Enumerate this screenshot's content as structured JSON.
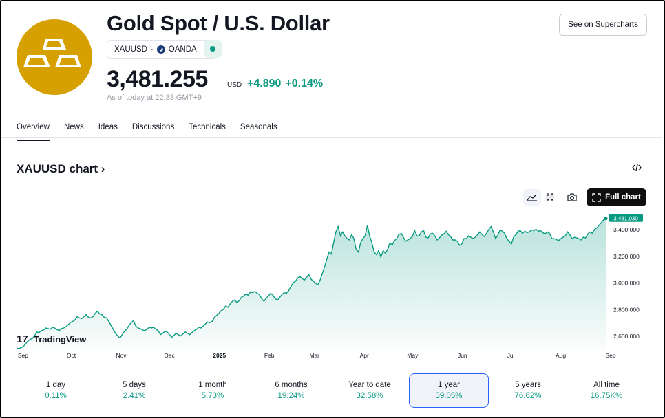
{
  "header": {
    "title": "Gold Spot / U.S. Dollar",
    "symbol": "XAUUSD",
    "separator": "·",
    "exchange": "OANDA",
    "price": "3,481.255",
    "currency": "USD",
    "change_abs": "+4.890",
    "change_pct": "+0.14%",
    "as_of": "As of today at 22:33 GMT+9",
    "supercharts_label": "See on Supercharts"
  },
  "tabs": [
    {
      "label": "Overview",
      "active": true
    },
    {
      "label": "News"
    },
    {
      "label": "Ideas"
    },
    {
      "label": "Discussions"
    },
    {
      "label": "Technicals"
    },
    {
      "label": "Seasonals"
    }
  ],
  "chart_section": {
    "title": "XAUUSD chart ›",
    "full_chart_label": "Full chart",
    "watermark": "TradingView"
  },
  "colors": {
    "accent_green": "#089981",
    "gold": "#d6a100",
    "selected_border": "#2962ff"
  },
  "chart_data": {
    "type": "area",
    "x_start": "2024-08-28",
    "x_end": "2025-08-29",
    "months": [
      "Sep",
      "Oct",
      "Nov",
      "Dec",
      "2025",
      "Feb",
      "Mar",
      "Apr",
      "May",
      "Jun",
      "Jul",
      "Aug",
      "Sep"
    ],
    "yticks": [
      "2,600.000",
      "2,800.000",
      "3,000.000",
      "3,200.000",
      "3,400.000"
    ],
    "ylim": [
      2500,
      3480
    ],
    "last_value_label": "3,481.030",
    "series": [
      {
        "values": [
          2510,
          2505,
          2512,
          2520,
          2540,
          2560,
          2575,
          2580,
          2600,
          2630,
          2625,
          2640,
          2645,
          2660,
          2655,
          2650,
          2665,
          2660,
          2648,
          2640,
          2655,
          2660,
          2670,
          2685,
          2700,
          2710,
          2720,
          2745,
          2735,
          2730,
          2745,
          2760,
          2740,
          2735,
          2745,
          2770,
          2785,
          2765,
          2760,
          2740,
          2735,
          2710,
          2680,
          2650,
          2620,
          2600,
          2585,
          2610,
          2635,
          2650,
          2680,
          2700,
          2715,
          2675,
          2660,
          2655,
          2645,
          2640,
          2650,
          2665,
          2660,
          2665,
          2650,
          2640,
          2610,
          2620,
          2635,
          2630,
          2610,
          2590,
          2605,
          2620,
          2610,
          2600,
          2615,
          2630,
          2620,
          2610,
          2625,
          2640,
          2650,
          2665,
          2660,
          2675,
          2690,
          2705,
          2700,
          2710,
          2740,
          2755,
          2770,
          2790,
          2800,
          2825,
          2815,
          2840,
          2860,
          2870,
          2850,
          2865,
          2890,
          2900,
          2915,
          2905,
          2930,
          2925,
          2935,
          2920,
          2910,
          2880,
          2860,
          2885,
          2900,
          2920,
          2905,
          2880,
          2870,
          2890,
          2910,
          2925,
          2920,
          2940,
          2970,
          3000,
          3010,
          3035,
          3045,
          3030,
          3020,
          3040,
          3060,
          3025,
          3010,
          2995,
          2985,
          3020,
          3070,
          3120,
          3180,
          3230,
          3215,
          3300,
          3380,
          3420,
          3350,
          3380,
          3350,
          3330,
          3320,
          3360,
          3330,
          3250,
          3230,
          3300,
          3330,
          3350,
          3430,
          3350,
          3300,
          3230,
          3210,
          3240,
          3190,
          3240,
          3220,
          3250,
          3300,
          3280,
          3315,
          3330,
          3360,
          3370,
          3340,
          3310,
          3320,
          3330,
          3345,
          3390,
          3350,
          3350,
          3380,
          3390,
          3340,
          3335,
          3365,
          3370,
          3350,
          3320,
          3335,
          3355,
          3365,
          3385,
          3360,
          3345,
          3320,
          3320,
          3310,
          3280,
          3290,
          3330,
          3330,
          3350,
          3340,
          3330,
          3340,
          3360,
          3380,
          3360,
          3345,
          3370,
          3400,
          3420,
          3380,
          3330,
          3355,
          3395,
          3385,
          3370,
          3330,
          3310,
          3290,
          3340,
          3360,
          3385,
          3390,
          3370,
          3385,
          3375,
          3380,
          3395,
          3390,
          3400,
          3385,
          3390,
          3375,
          3365,
          3380,
          3370,
          3330,
          3330,
          3325,
          3315,
          3330,
          3340,
          3350,
          3380,
          3360,
          3330,
          3340,
          3335,
          3330,
          3320,
          3340,
          3335,
          3365,
          3380,
          3370,
          3400,
          3410,
          3430,
          3450,
          3470,
          3481
        ]
      }
    ]
  },
  "periods": [
    {
      "label": "1 day",
      "value": "0.11%"
    },
    {
      "label": "5 days",
      "value": "2.41%"
    },
    {
      "label": "1 month",
      "value": "5.73%"
    },
    {
      "label": "6 months",
      "value": "19.24%"
    },
    {
      "label": "Year to date",
      "value": "32.58%"
    },
    {
      "label": "1 year",
      "value": "39.05%",
      "active": true
    },
    {
      "label": "5 years",
      "value": "76.62%"
    },
    {
      "label": "All time",
      "value": "16.75K%"
    }
  ]
}
